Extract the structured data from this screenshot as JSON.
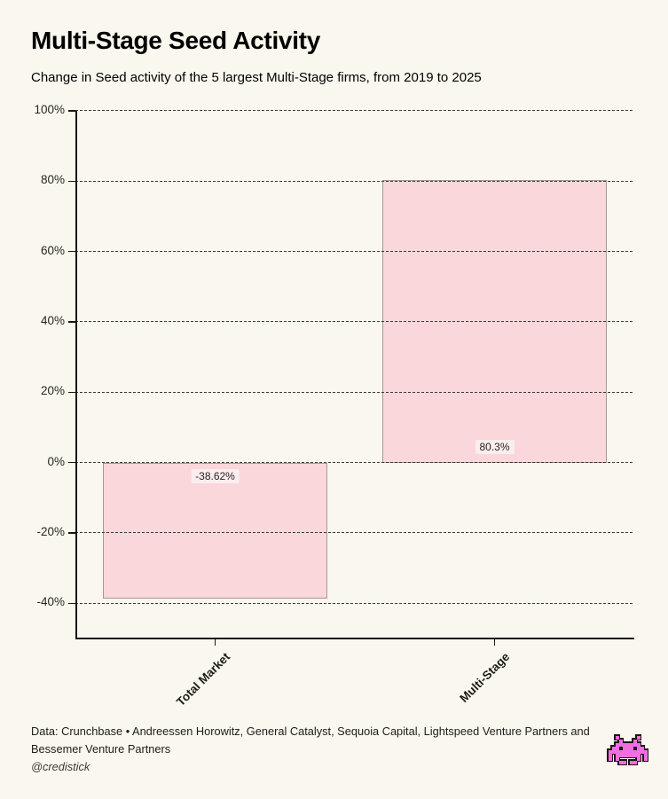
{
  "page": {
    "background": "#faf8ee"
  },
  "header": {
    "title": "Multi-Stage Seed Activity",
    "subtitle": "Change in Seed activity of the 5 largest Multi-Stage firms, from 2019 to 2025"
  },
  "chart_data": {
    "type": "bar",
    "title": "Multi-Stage Seed Activity",
    "subtitle": "Change in Seed activity of the 5 largest Multi-Stage firms, from 2019 to 2025",
    "categories": [
      "Total Market",
      "Multi-Stage"
    ],
    "values": [
      -38.62,
      80.3
    ],
    "value_labels": [
      "-38.62%",
      "80.3%"
    ],
    "xlabel": "",
    "ylabel": "",
    "ylim": [
      -50,
      100
    ],
    "yticks": [
      {
        "value": 100,
        "label": "100%"
      },
      {
        "value": 80,
        "label": "80%"
      },
      {
        "value": 60,
        "label": "60%"
      },
      {
        "value": 40,
        "label": "40%"
      },
      {
        "value": 20,
        "label": "20%"
      },
      {
        "value": 0,
        "label": "0%"
      },
      {
        "value": -20,
        "label": "-20%"
      },
      {
        "value": -40,
        "label": "-40%"
      }
    ],
    "grid": "horizontal-dashed",
    "legend": "none",
    "bar_color": "#f9d7da",
    "bar_border_color": "#a39a91",
    "gridline_color": "#3a3a38"
  },
  "footer": {
    "source_lines": [
      "Data: Crunchbase • Andreessen Horowitz, General Catalyst, Sequoia Capital, Lightspeed Venture Partners and",
      "Bessemer Venture Partners"
    ],
    "credit": "@credistick",
    "icon": "space-invader",
    "icon_color": "#f16ee2"
  }
}
